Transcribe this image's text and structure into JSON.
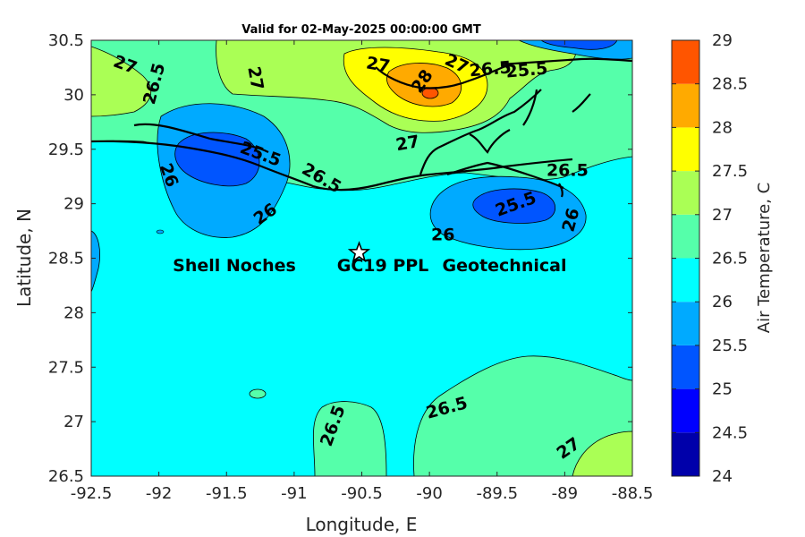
{
  "title": "Valid for 02-May-2025 00:00:00 GMT",
  "x_axis": {
    "label": "Longitude, E",
    "range": [
      -92.5,
      -88.5
    ],
    "ticks": [
      {
        "value": -92.5,
        "label": "-92.5"
      },
      {
        "value": -92,
        "label": "-92"
      },
      {
        "value": -91.5,
        "label": "-91.5"
      },
      {
        "value": -91,
        "label": "-91"
      },
      {
        "value": -90.5,
        "label": "-90.5"
      },
      {
        "value": -90,
        "label": "-90"
      },
      {
        "value": -89.5,
        "label": "-89.5"
      },
      {
        "value": -89,
        "label": "-89"
      },
      {
        "value": -88.5,
        "label": "-88.5"
      }
    ]
  },
  "y_axis": {
    "label": "Latitude, N",
    "range": [
      26.5,
      30.5
    ],
    "ticks": [
      {
        "value": 26.5,
        "label": "26.5"
      },
      {
        "value": 27,
        "label": "27"
      },
      {
        "value": 27.5,
        "label": "27.5"
      },
      {
        "value": 28,
        "label": "28"
      },
      {
        "value": 28.5,
        "label": "28.5"
      },
      {
        "value": 29,
        "label": "29"
      },
      {
        "value": 29.5,
        "label": "29.5"
      },
      {
        "value": 30,
        "label": "30"
      },
      {
        "value": 30.5,
        "label": "30.5"
      }
    ]
  },
  "colorbar": {
    "label": "Air Temperature, C",
    "range": [
      24,
      29
    ],
    "ticks": [
      {
        "value": 24,
        "label": "24"
      },
      {
        "value": 24.5,
        "label": "24.5"
      },
      {
        "value": 25,
        "label": "25"
      },
      {
        "value": 25.5,
        "label": "25.5"
      },
      {
        "value": 26,
        "label": "26"
      },
      {
        "value": 26.5,
        "label": "26.5"
      },
      {
        "value": 27,
        "label": "27"
      },
      {
        "value": 27.5,
        "label": "27.5"
      },
      {
        "value": 28,
        "label": "28"
      },
      {
        "value": 28.5,
        "label": "28.5"
      },
      {
        "value": 29,
        "label": "29"
      }
    ],
    "bands": [
      {
        "from": 24,
        "to": 24.5,
        "color": "#0000aa"
      },
      {
        "from": 24.5,
        "to": 25,
        "color": "#0000ff"
      },
      {
        "from": 25,
        "to": 25.5,
        "color": "#0055ff"
      },
      {
        "from": 25.5,
        "to": 26,
        "color": "#00aaff"
      },
      {
        "from": 26,
        "to": 26.5,
        "color": "#00ffff"
      },
      {
        "from": 26.5,
        "to": 27,
        "color": "#55ffaa"
      },
      {
        "from": 27,
        "to": 27.5,
        "color": "#aaff55"
      },
      {
        "from": 27.5,
        "to": 28,
        "color": "#ffff00"
      },
      {
        "from": 28,
        "to": 28.5,
        "color": "#ffaa00"
      },
      {
        "from": 28.5,
        "to": 29,
        "color": "#ff5500"
      }
    ],
    "top_color": "#ff0000"
  },
  "site": {
    "label_parts": [
      "Shell Noches",
      "GC19 PPL",
      "Geotechnical"
    ],
    "lon": -90.52,
    "lat": 28.55,
    "marker": "star-icon"
  },
  "contour_labels": [
    {
      "text": "27",
      "lon": -92.25,
      "lat": 30.27,
      "rot": 20
    },
    {
      "text": "26.5",
      "lon": -92.03,
      "lat": 30.1,
      "rot": -75
    },
    {
      "text": "27",
      "lon": -91.29,
      "lat": 30.15,
      "rot": 80
    },
    {
      "text": "27",
      "lon": -90.38,
      "lat": 30.27,
      "rot": 10
    },
    {
      "text": "28",
      "lon": -90.05,
      "lat": 30.12,
      "rot": -55
    },
    {
      "text": "27",
      "lon": -89.8,
      "lat": 30.28,
      "rot": 25
    },
    {
      "text": "26.5",
      "lon": -89.55,
      "lat": 30.23,
      "rot": -5
    },
    {
      "text": "25.5",
      "lon": -89.28,
      "lat": 30.22,
      "rot": -5
    },
    {
      "text": "27",
      "lon": -90.16,
      "lat": 29.55,
      "rot": -10
    },
    {
      "text": "25.5",
      "lon": -91.25,
      "lat": 29.45,
      "rot": 20
    },
    {
      "text": "26.5",
      "lon": -90.8,
      "lat": 29.23,
      "rot": 30
    },
    {
      "text": "26",
      "lon": -91.93,
      "lat": 29.26,
      "rot": 70
    },
    {
      "text": "26",
      "lon": -91.21,
      "lat": 28.9,
      "rot": -35
    },
    {
      "text": "26.5",
      "lon": -88.98,
      "lat": 29.3,
      "rot": 0
    },
    {
      "text": "25.5",
      "lon": -89.36,
      "lat": 28.99,
      "rot": -20
    },
    {
      "text": "26",
      "lon": -88.95,
      "lat": 28.85,
      "rot": -75
    },
    {
      "text": "26",
      "lon": -89.9,
      "lat": 28.71,
      "rot": 0
    },
    {
      "text": "26.5",
      "lon": -90.71,
      "lat": 26.96,
      "rot": -70
    },
    {
      "text": "26.5",
      "lon": -89.87,
      "lat": 27.12,
      "rot": -15
    },
    {
      "text": "27",
      "lon": -88.97,
      "lat": 26.75,
      "rot": -35
    }
  ]
}
